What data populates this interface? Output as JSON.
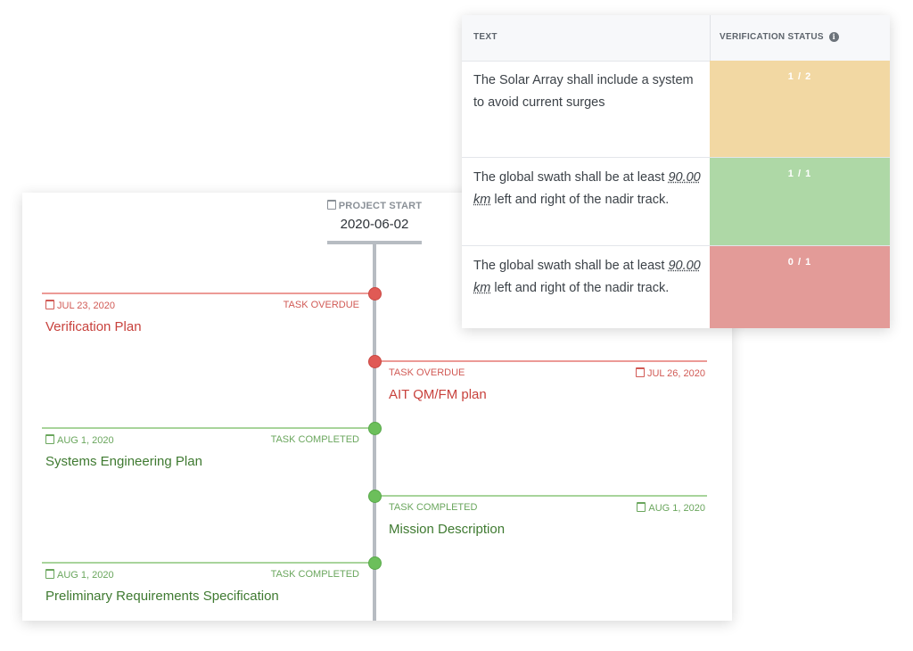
{
  "timeline": {
    "start_label": "PROJECT START",
    "start_date": "2020-06-02",
    "tasks": [
      {
        "date": "JUL 23, 2020",
        "status": "TASK OVERDUE",
        "title": "Verification Plan"
      },
      {
        "date": "JUL 26, 2020",
        "status": "TASK OVERDUE",
        "title": "AIT QM/FM plan"
      },
      {
        "date": "AUG 1, 2020",
        "status": "TASK COMPLETED",
        "title": "Systems Engineering Plan"
      },
      {
        "date": "AUG 1, 2020",
        "status": "TASK COMPLETED",
        "title": "Mission Description"
      },
      {
        "date": "AUG 1, 2020",
        "status": "TASK COMPLETED",
        "title": "Preliminary Requirements Specification"
      }
    ]
  },
  "requirements_table": {
    "headers": {
      "text": "TEXT",
      "verification_status": "VERIFICATION STATUS"
    },
    "rows": [
      {
        "text_before": "The Solar Array shall include a system to avoid current surges",
        "quantity": "",
        "text_after": "",
        "status": "1 / 2",
        "status_color": "#f2d8a3"
      },
      {
        "text_before": "The global swath shall be at least ",
        "quantity": "90.00 km",
        "text_after": " left and right of the nadir track.",
        "status": "1 / 1",
        "status_color": "#aed8a6"
      },
      {
        "text_before": "The global swath shall be at least ",
        "quantity": "90.00 km",
        "text_after": " left and right of the nadir track.",
        "status": "0 / 1",
        "status_color": "#e39b98"
      }
    ]
  },
  "colors": {
    "overdue": "#d15a55",
    "completed": "#6aa65d",
    "spine": "#b7bcc2"
  }
}
